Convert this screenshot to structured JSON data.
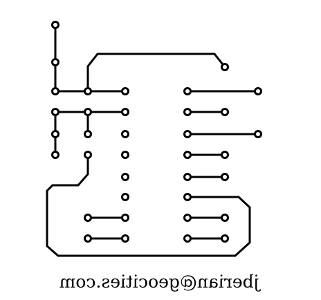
{
  "board": {
    "signature_text": "jberian@geocities.com",
    "signature_mirrored": true,
    "colors": {
      "background": "#ffffff",
      "copper": "#000000",
      "pad_hole": "#ffffff"
    }
  }
}
